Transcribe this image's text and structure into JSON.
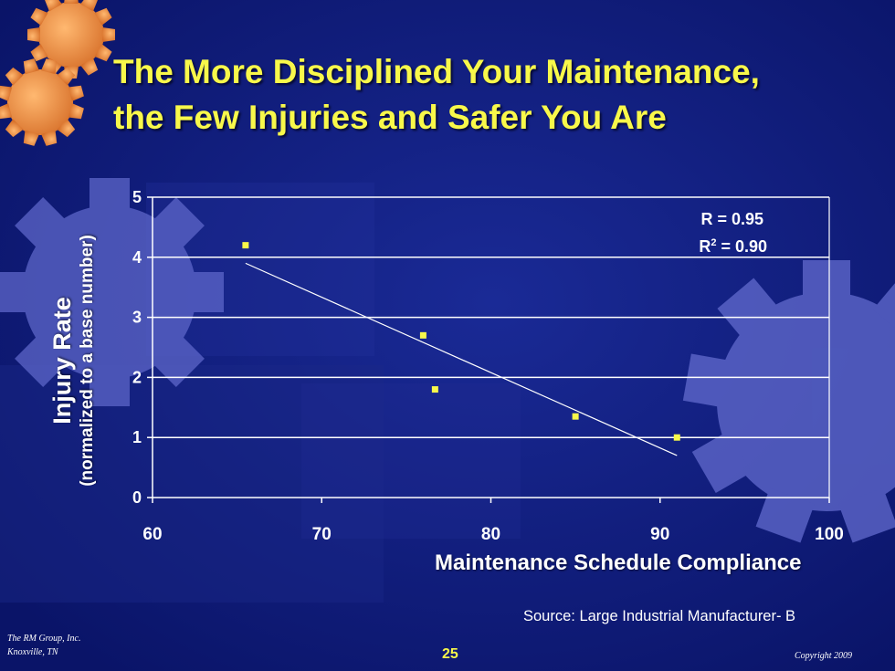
{
  "slide": {
    "title_lines": [
      "The More Disciplined Your Maintenance,",
      "the Few Injuries and Safer You Are"
    ],
    "source": "Source: Large Industrial Manufacturer- B",
    "footer_org_lines": [
      "The RM Group, Inc.",
      "Knoxville, TN"
    ],
    "page_number": "25",
    "copyright": "Copyright 2009",
    "colors": {
      "background": "#0c1a78",
      "title": "#f8f84a",
      "marker": "#f8f84a",
      "gear_orange": "#e88a3c",
      "gear_blue": "#5d66c9"
    },
    "icons": [
      "gear-icon",
      "gear-icon"
    ]
  },
  "chart_data": {
    "type": "scatter",
    "title": "",
    "xlabel": "Maintenance Schedule Compliance",
    "ylabel_lines": [
      "Injury Rate",
      "(normalized to a base number)"
    ],
    "xlim": [
      60,
      100
    ],
    "ylim": [
      0,
      5
    ],
    "xticks": [
      "60",
      "70",
      "80",
      "90",
      "100"
    ],
    "yticks": [
      "0",
      "1",
      "2",
      "3",
      "4",
      "5"
    ],
    "grid": true,
    "points": [
      {
        "x": 65.5,
        "y": 4.2
      },
      {
        "x": 76.0,
        "y": 2.7
      },
      {
        "x": 76.7,
        "y": 1.8
      },
      {
        "x": 85.0,
        "y": 1.35
      },
      {
        "x": 91.0,
        "y": 1.0
      }
    ],
    "trendline": {
      "x1": 65.5,
      "y1": 3.9,
      "x2": 91.0,
      "y2": 0.7
    },
    "annotations": {
      "r_text": "R = 0.95",
      "r2_prefix": "R",
      "r2_sup": "2",
      "r2_suffix": " = 0.90"
    }
  }
}
